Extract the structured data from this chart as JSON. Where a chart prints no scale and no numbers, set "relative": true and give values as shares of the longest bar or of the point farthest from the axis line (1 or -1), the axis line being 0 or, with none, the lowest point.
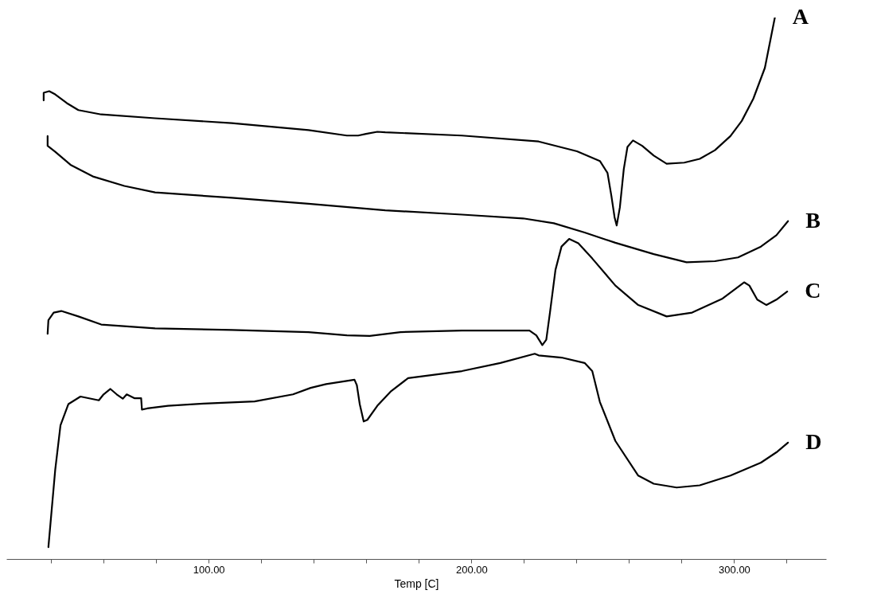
{
  "chart_data": {
    "type": "line",
    "relative": true,
    "xlabel": "Temp [C]",
    "xlim": [
      23,
      335
    ],
    "xticks": [
      {
        "value": 40,
        "label": null
      },
      {
        "value": 60,
        "label": null
      },
      {
        "value": 80,
        "label": null
      },
      {
        "value": 100,
        "label": "100.00"
      },
      {
        "value": 120,
        "label": null
      },
      {
        "value": 140,
        "label": null
      },
      {
        "value": 160,
        "label": null
      },
      {
        "value": 180,
        "label": null
      },
      {
        "value": 200,
        "label": "200.00"
      },
      {
        "value": 220,
        "label": null
      },
      {
        "value": 240,
        "label": null
      },
      {
        "value": 260,
        "label": null
      },
      {
        "value": 280,
        "label": null
      },
      {
        "value": 300,
        "label": "300.00"
      },
      {
        "value": 320,
        "label": null
      }
    ],
    "grid": false,
    "legend": false,
    "marker": "none",
    "line_style": "solid",
    "series": [
      {
        "name": "A",
        "color": "#000000",
        "x": [
          37.2,
          37.2,
          39.3,
          41.6,
          46.0,
          50.4,
          59.1,
          79.6,
          108.8,
          138.0,
          152.6,
          156.9,
          159.9,
          164.2,
          167.2,
          196.4,
          225.6,
          240.2,
          248.9,
          251.8,
          253.3,
          254.5,
          255.3,
          256.5,
          258.0,
          259.4,
          261.5,
          265.0,
          269.4,
          274.3,
          281.0,
          286.9,
          292.7,
          298.6,
          302.9,
          307.3,
          311.7,
          315.5
        ],
        "values": [
          0.847,
          0.861,
          0.864,
          0.858,
          0.842,
          0.829,
          0.821,
          0.814,
          0.805,
          0.792,
          0.782,
          0.782,
          0.785,
          0.789,
          0.788,
          0.782,
          0.771,
          0.753,
          0.735,
          0.713,
          0.67,
          0.631,
          0.616,
          0.649,
          0.72,
          0.761,
          0.773,
          0.763,
          0.745,
          0.73,
          0.732,
          0.739,
          0.755,
          0.781,
          0.809,
          0.85,
          0.907,
          1.0
        ]
      },
      {
        "name": "B",
        "color": "#000000",
        "x": [
          38.7,
          38.7,
          41.6,
          47.4,
          56.2,
          67.9,
          79.6,
          108.8,
          138.0,
          167.2,
          196.4,
          219.7,
          231.4,
          243.1,
          254.8,
          269.4,
          281.9,
          292.7,
          301.5,
          310.2,
          316.1,
          320.5
        ],
        "values": [
          0.781,
          0.763,
          0.752,
          0.728,
          0.706,
          0.689,
          0.677,
          0.667,
          0.656,
          0.644,
          0.636,
          0.629,
          0.62,
          0.603,
          0.584,
          0.563,
          0.548,
          0.55,
          0.557,
          0.577,
          0.598,
          0.624
        ]
      },
      {
        "name": "C",
        "color": "#000000",
        "x": [
          38.7,
          39.0,
          41.0,
          43.9,
          50.4,
          59.1,
          79.6,
          108.8,
          138.0,
          152.6,
          161.3,
          173.0,
          196.4,
          222.1,
          224.7,
          227.0,
          228.5,
          229.9,
          232.0,
          234.3,
          237.2,
          240.7,
          246.0,
          254.8,
          263.5,
          274.3,
          284.0,
          295.6,
          303.8,
          305.8,
          308.8,
          312.3,
          316.1,
          320.2
        ],
        "values": [
          0.416,
          0.441,
          0.455,
          0.458,
          0.448,
          0.433,
          0.426,
          0.423,
          0.419,
          0.413,
          0.412,
          0.419,
          0.422,
          0.422,
          0.413,
          0.395,
          0.405,
          0.455,
          0.534,
          0.577,
          0.591,
          0.583,
          0.555,
          0.505,
          0.469,
          0.448,
          0.455,
          0.481,
          0.511,
          0.505,
          0.479,
          0.469,
          0.479,
          0.494
        ]
      },
      {
        "name": "D",
        "color": "#000000",
        "x": [
          39.0,
          41.6,
          43.6,
          46.6,
          51.2,
          58.2,
          60.0,
          62.6,
          65.0,
          67.3,
          68.8,
          71.7,
          74.3,
          74.6,
          76.6,
          84.5,
          98.0,
          117.5,
          132.1,
          138.8,
          144.7,
          155.5,
          156.4,
          157.5,
          159.0,
          160.4,
          164.2,
          169.2,
          175.9,
          196.4,
          211.0,
          224.1,
          225.6,
          234.3,
          243.1,
          246.0,
          248.9,
          254.8,
          263.5,
          269.4,
          278.1,
          286.9,
          298.6,
          310.2,
          316.1,
          320.5
        ],
        "values": [
          0.022,
          0.165,
          0.247,
          0.286,
          0.3,
          0.293,
          0.304,
          0.314,
          0.304,
          0.296,
          0.304,
          0.297,
          0.297,
          0.276,
          0.278,
          0.283,
          0.287,
          0.291,
          0.304,
          0.316,
          0.323,
          0.331,
          0.321,
          0.286,
          0.254,
          0.257,
          0.283,
          0.309,
          0.334,
          0.347,
          0.362,
          0.379,
          0.376,
          0.372,
          0.362,
          0.347,
          0.29,
          0.218,
          0.154,
          0.139,
          0.132,
          0.136,
          0.154,
          0.178,
          0.197,
          0.215
        ]
      }
    ]
  }
}
